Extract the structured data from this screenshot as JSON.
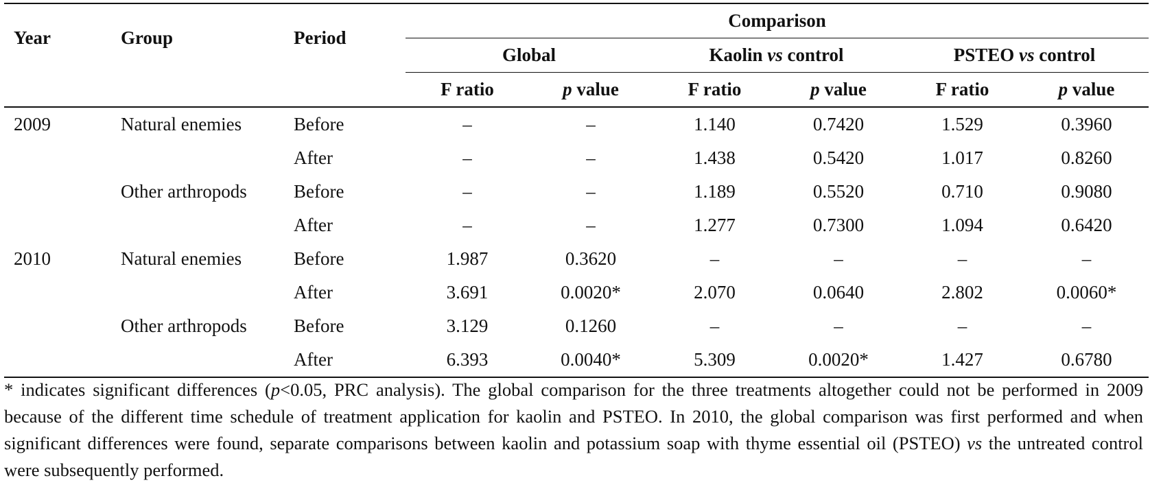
{
  "table": {
    "header": {
      "year": "Year",
      "group": "Group",
      "period": "Period",
      "comparison": "Comparison",
      "global": "Global",
      "kaolin_pre": "Kaolin ",
      "kaolin_vs": "vs",
      "kaolin_post": " control",
      "psteo_pre": "PSTEO ",
      "psteo_vs": "vs",
      "psteo_post": " control",
      "f_ratio": "F ratio",
      "p_italic": "p",
      "p_rest": " value"
    },
    "rows": [
      {
        "year": "2009",
        "group": "Natural enemies",
        "period": "Before",
        "global_f": "–",
        "global_p": "–",
        "kaolin_f": "1.140",
        "kaolin_p": "0.7420",
        "psteo_f": "1.529",
        "psteo_p": "0.3960"
      },
      {
        "year": "",
        "group": "",
        "period": "After",
        "global_f": "–",
        "global_p": "–",
        "kaolin_f": "1.438",
        "kaolin_p": "0.5420",
        "psteo_f": "1.017",
        "psteo_p": "0.8260"
      },
      {
        "year": "",
        "group": "Other arthropods",
        "period": "Before",
        "global_f": "–",
        "global_p": "–",
        "kaolin_f": "1.189",
        "kaolin_p": "0.5520",
        "psteo_f": "0.710",
        "psteo_p": "0.9080"
      },
      {
        "year": "",
        "group": "",
        "period": "After",
        "global_f": "–",
        "global_p": "–",
        "kaolin_f": "1.277",
        "kaolin_p": "0.7300",
        "psteo_f": "1.094",
        "psteo_p": "0.6420"
      },
      {
        "year": "2010",
        "group": "Natural enemies",
        "period": "Before",
        "global_f": "1.987",
        "global_p": "0.3620",
        "kaolin_f": "–",
        "kaolin_p": "–",
        "psteo_f": "–",
        "psteo_p": "–"
      },
      {
        "year": "",
        "group": "",
        "period": "After",
        "global_f": "3.691",
        "global_p": "0.0020*",
        "kaolin_f": "2.070",
        "kaolin_p": "0.0640",
        "psteo_f": "2.802",
        "psteo_p": "0.0060*"
      },
      {
        "year": "",
        "group": "Other arthropods",
        "period": "Before",
        "global_f": "3.129",
        "global_p": "0.1260",
        "kaolin_f": "–",
        "kaolin_p": "–",
        "psteo_f": "–",
        "psteo_p": "–"
      },
      {
        "year": "",
        "group": "",
        "period": "After",
        "global_f": "6.393",
        "global_p": "0.0040*",
        "kaolin_f": "5.309",
        "kaolin_p": "0.0020*",
        "psteo_f": "1.427",
        "psteo_p": "0.6780"
      }
    ]
  },
  "footnote": {
    "part1": "* indicates significant differences (",
    "p": "p",
    "part2": "<0.05, PRC analysis).  The global comparison for the three treatments altogether could not be performed in 2009 because of the different time schedule of treatment application for kaolin and PSTEO. In 2010, the global comparison was first performed and when significant differences were found, separate comparisons between kaolin and potassium soap with thyme essential oil (PSTEO) ",
    "vs": "vs",
    "part3": " the untreated control were subsequently performed."
  }
}
